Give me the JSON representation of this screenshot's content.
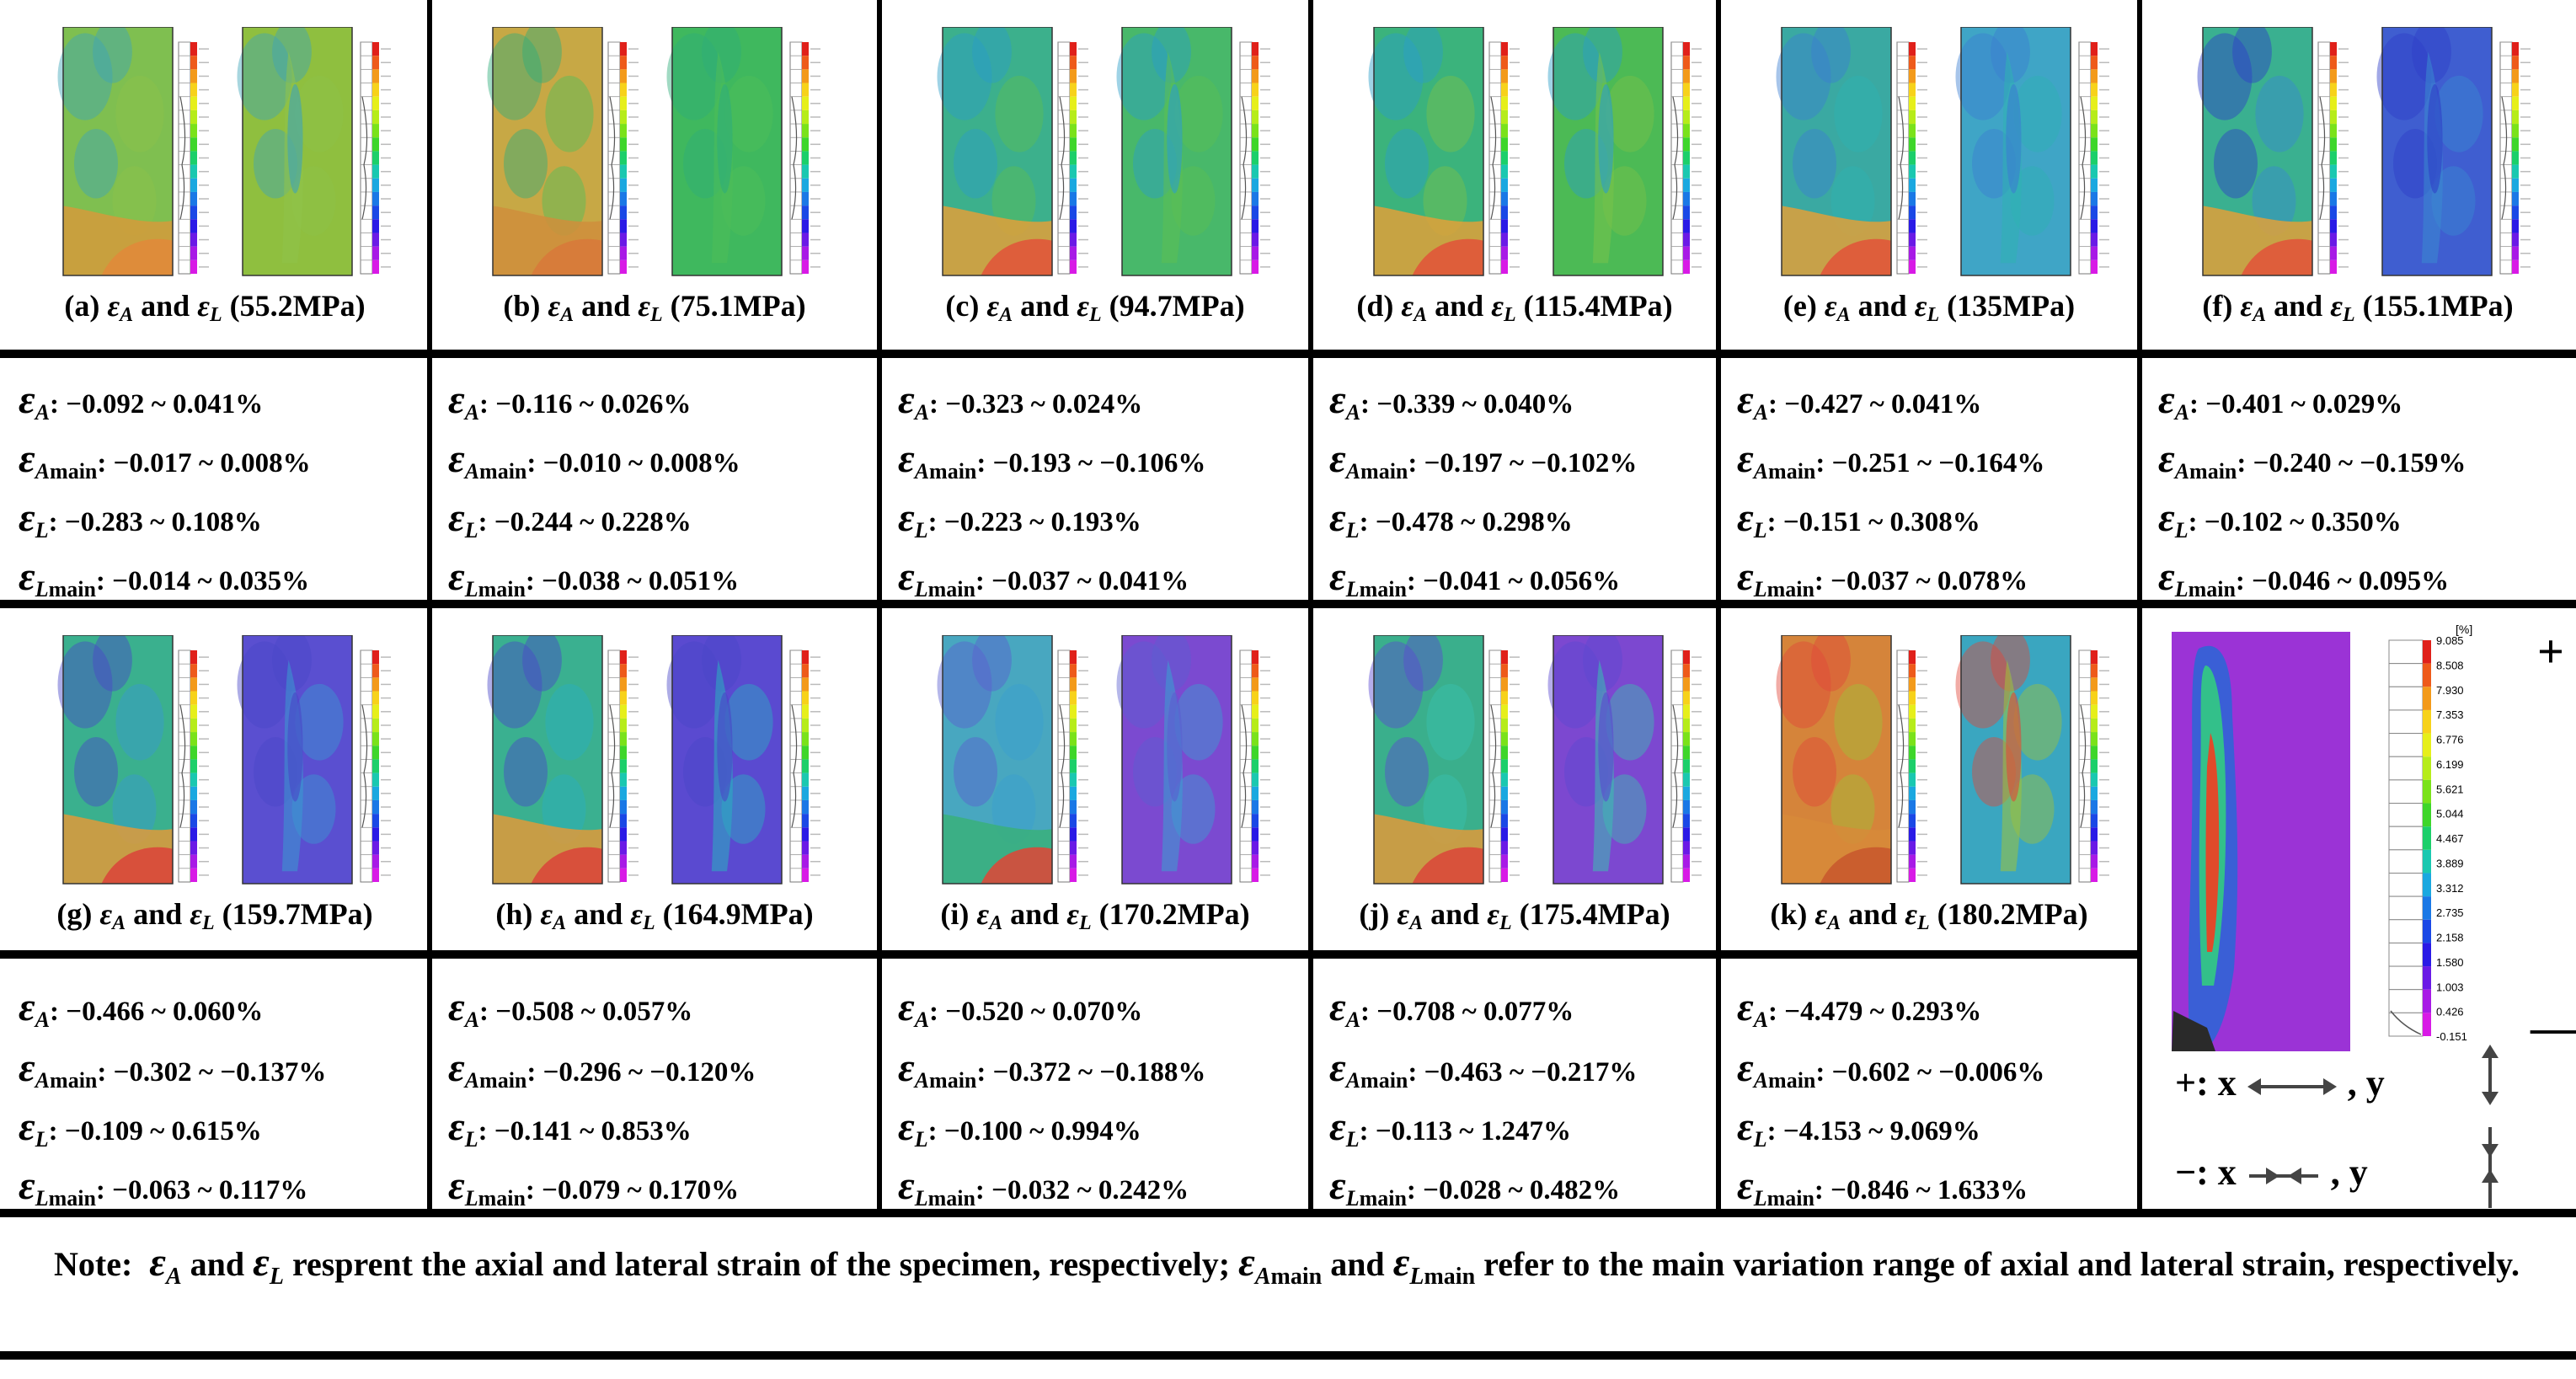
{
  "panels": [
    {
      "caption_prefix": "(a)",
      "caption_pressure": "(55.2MPa)",
      "eA": "−0.092 ~ 0.041%",
      "eAmain": "−0.017 ~ 0.008%",
      "eL": "−0.283 ~ 0.108%",
      "eLmain": "−0.014 ~ 0.035%",
      "left_color": "#7fbf50",
      "right_color": "#8fbf3f",
      "warm": "#e08a3a",
      "warm2": "#d59a3b",
      "cold": "#3ea4b8",
      "cold2": "#8fc24a"
    },
    {
      "caption_prefix": "(b)",
      "caption_pressure": "(75.1MPa)",
      "eA": "−0.116 ~ 0.026%",
      "eAmain": "−0.010 ~ 0.008%",
      "eL": "−0.244 ~ 0.228%",
      "eLmain": "−0.038 ~ 0.051%",
      "left_color": "#c7a845",
      "right_color": "#3fb85e",
      "warm": "#d87a3a",
      "warm2": "#cf8e3c",
      "cold": "#2fae7a",
      "cold2": "#4fbe58"
    },
    {
      "caption_prefix": "(c)",
      "caption_pressure": "(94.7MPa)",
      "eA": "−0.323 ~ 0.024%",
      "eAmain": "−0.193 ~ −0.106%",
      "eL": "−0.223 ~ 0.193%",
      "eLmain": "−0.037 ~ 0.041%",
      "left_color": "#3cb08c",
      "right_color": "#48b86a",
      "warm": "#e0573a",
      "warm2": "#e0a03a",
      "cold": "#2b9ec8",
      "cold2": "#5cbf52"
    },
    {
      "caption_prefix": "(d)",
      "caption_pressure": "(115.4MPa)",
      "eA": "−0.339 ~ 0.040%",
      "eAmain": "−0.197 ~ −0.102%",
      "eL": "−0.478 ~ 0.298%",
      "eLmain": "−0.041 ~ 0.056%",
      "left_color": "#3bb37c",
      "right_color": "#4cba55",
      "warm": "#e0573a",
      "warm2": "#e0a03a",
      "cold": "#2b9ec8",
      "cold2": "#79c24a"
    },
    {
      "caption_prefix": "(e)",
      "caption_pressure": "(135MPa)",
      "eA": "−0.427 ~ 0.041%",
      "eAmain": "−0.251 ~ −0.164%",
      "eL": "−0.151 ~ 0.308%",
      "eLmain": "−0.037 ~ 0.078%",
      "left_color": "#3aa9a2",
      "right_color": "#3fa5c6",
      "warm": "#e0573a",
      "warm2": "#e0a03a",
      "cold": "#3b7fd0",
      "cold2": "#2fb2b2"
    },
    {
      "caption_prefix": "(f)",
      "caption_pressure": "(155.1MPa)",
      "eA": "−0.401 ~ 0.029%",
      "eAmain": "−0.240 ~ −0.159%",
      "eL": "−0.102 ~ 0.350%",
      "eLmain": "−0.046 ~ 0.095%",
      "left_color": "#3ab090",
      "right_color": "#3f5ed0",
      "warm": "#e0573a",
      "warm2": "#e0a03a",
      "cold": "#2f3fc8",
      "cold2": "#3a8ad0"
    },
    {
      "caption_prefix": "(g)",
      "caption_pressure": "(159.7MPa)",
      "eA": "−0.466 ~ 0.060%",
      "eAmain": "−0.302 ~ −0.137%",
      "eL": "−0.109 ~ 0.615%",
      "eLmain": "−0.063 ~ 0.117%",
      "left_color": "#3ab08e",
      "right_color": "#5a4fd0",
      "warm": "#d9483a",
      "warm2": "#e09a3a",
      "cold": "#4a46c8",
      "cold2": "#3a9ad0"
    },
    {
      "caption_prefix": "(h)",
      "caption_pressure": "(164.9MPa)",
      "eA": "−0.508 ~ 0.057%",
      "eAmain": "−0.296 ~ −0.120%",
      "eL": "−0.141 ~ 0.853%",
      "eLmain": "−0.079 ~ 0.170%",
      "left_color": "#3ab090",
      "right_color": "#5a4ad0",
      "warm": "#d9483a",
      "warm2": "#e09a3a",
      "cold": "#4a46c8",
      "cold2": "#2ab0c0"
    },
    {
      "caption_prefix": "(i)",
      "caption_pressure": "(170.2MPa)",
      "eA": "−0.520 ~ 0.070%",
      "eAmain": "−0.372 ~ −0.188%",
      "eL": "−0.100 ~ 0.994%",
      "eLmain": "−0.032 ~ 0.242%",
      "left_color": "#48a7c0",
      "right_color": "#7b4ad0",
      "warm": "#d94a3a",
      "warm2": "#3ab07a",
      "cold": "#5a5fd0",
      "cold2": "#3aa0d0"
    },
    {
      "caption_prefix": "(j)",
      "caption_pressure": "(175.4MPa)",
      "eA": "−0.708 ~ 0.077%",
      "eAmain": "−0.463 ~ −0.217%",
      "eL": "−0.113 ~ 1.247%",
      "eLmain": "−0.028 ~ 0.482%",
      "left_color": "#3aaf8c",
      "right_color": "#7c48d0",
      "warm": "#d94a3a",
      "warm2": "#e09a3a",
      "cold": "#5a4ad0",
      "cold2": "#3ac0b0"
    },
    {
      "caption_prefix": "(k)",
      "caption_pressure": "(180.2MPa)",
      "eA": "−4.479 ~ 0.293%",
      "eAmain": "−0.602 ~ −0.006%",
      "eL": "−4.153 ~ 9.069%",
      "eLmain": "−0.846 ~ 1.633%",
      "left_color": "#d5843a",
      "right_color": "#3aa6c0",
      "warm": "#c95a2e",
      "warm2": "#d7893a",
      "cold": "#e0483a",
      "cold2": "#9fc23a"
    }
  ],
  "connector": "and",
  "eA_symbol": "ε",
  "eA_sub": "A",
  "eL_sub": "L",
  "main_sub": "main",
  "legend": {
    "unit": "[%]",
    "ticks": [
      "9.085",
      "8.508",
      "7.930",
      "7.353",
      "6.776",
      "6.199",
      "5.621",
      "5.044",
      "4.467",
      "3.889",
      "3.312",
      "2.735",
      "2.158",
      "1.580",
      "1.003",
      "0.426",
      "-0.151"
    ],
    "colors": [
      "#e0201a",
      "#ee5a1a",
      "#f39a1a",
      "#f7d21a",
      "#e6ef1a",
      "#b6ec1a",
      "#7ae21a",
      "#3ed62a",
      "#1ccf6a",
      "#1ac8b0",
      "#1aa8e0",
      "#1a78e6",
      "#1a48e6",
      "#2a1ae6",
      "#6a1ae6",
      "#a81ae6",
      "#d81ae6"
    ],
    "plus_sign": "+",
    "minus_sign": "—",
    "plus_desc_prefix": "+: x",
    "plus_desc_suffix": ", y",
    "minus_desc_prefix": "−: x",
    "minus_desc_suffix": ", y"
  },
  "note": {
    "label": "Note:",
    "text1": "and",
    "text2": "resprent the axial and lateral strain of the specimen, respectively;",
    "text3": "and",
    "text4": "refer to the main variation range of axial and lateral strain, respectively."
  }
}
